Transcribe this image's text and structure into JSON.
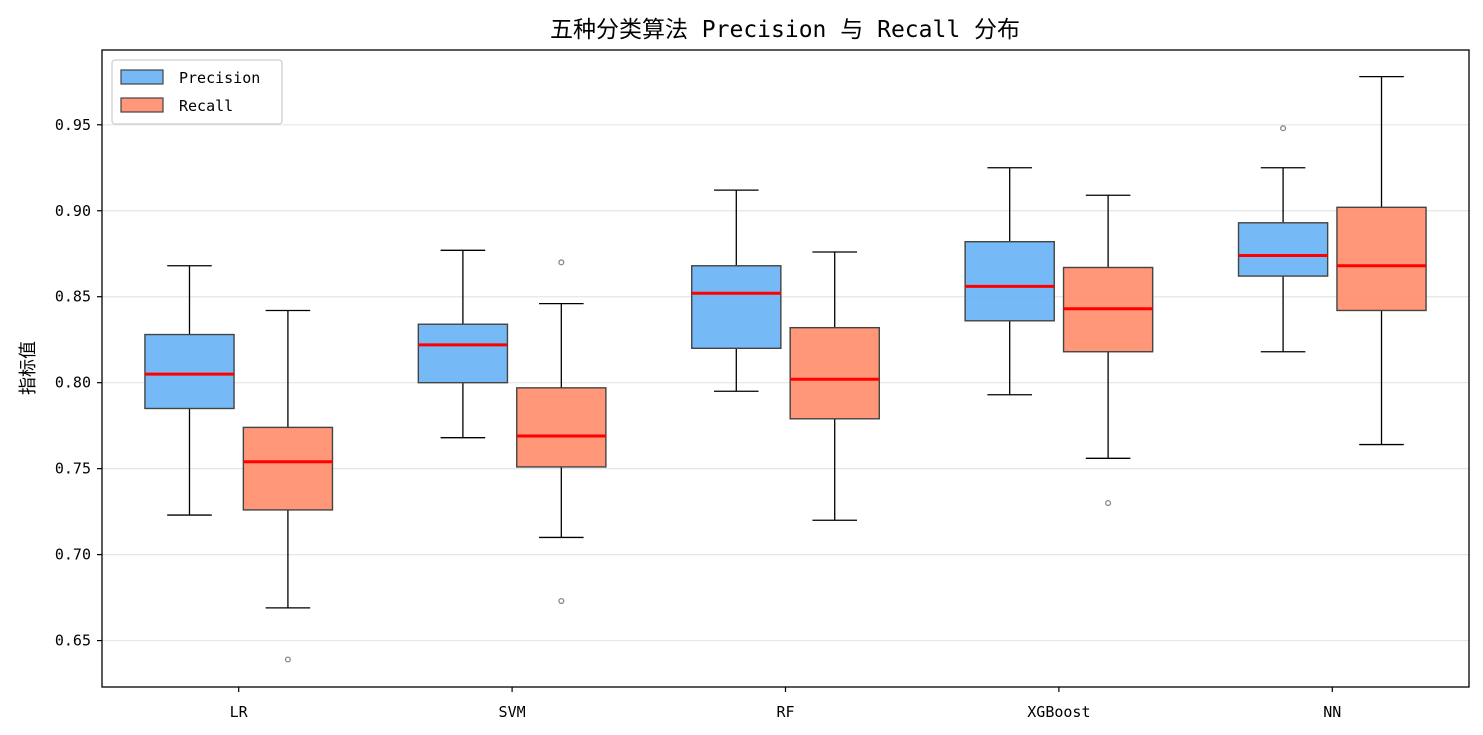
{
  "chart_data": {
    "type": "box",
    "title": "五种分类算法 Precision 与 Recall 分布",
    "xlabel": "",
    "ylabel": "指标值",
    "categories": [
      "LR",
      "SVM",
      "RF",
      "XGBoost",
      "NN"
    ],
    "ylim": [
      0.623,
      0.9935
    ],
    "yticks": [
      0.65,
      0.7,
      0.75,
      0.8,
      0.85,
      0.9,
      0.95
    ],
    "ytick_labels": [
      "0.65",
      "0.70",
      "0.75",
      "0.80",
      "0.85",
      "0.90",
      "0.95"
    ],
    "grid": "horizontal",
    "legend_position": "top-left",
    "series": [
      {
        "name": "Precision",
        "color": "#66B3F5",
        "boxes": [
          {
            "whislo": 0.723,
            "q1": 0.785,
            "med": 0.805,
            "q3": 0.828,
            "whishi": 0.868,
            "fliers": []
          },
          {
            "whislo": 0.768,
            "q1": 0.8,
            "med": 0.822,
            "q3": 0.834,
            "whishi": 0.877,
            "fliers": []
          },
          {
            "whislo": 0.795,
            "q1": 0.82,
            "med": 0.852,
            "q3": 0.868,
            "whishi": 0.912,
            "fliers": []
          },
          {
            "whislo": 0.793,
            "q1": 0.836,
            "med": 0.856,
            "q3": 0.882,
            "whishi": 0.925,
            "fliers": []
          },
          {
            "whislo": 0.818,
            "q1": 0.862,
            "med": 0.874,
            "q3": 0.893,
            "whishi": 0.925,
            "fliers": [
              0.948
            ]
          }
        ]
      },
      {
        "name": "Recall",
        "color": "#FF8C69",
        "boxes": [
          {
            "whislo": 0.669,
            "q1": 0.726,
            "med": 0.754,
            "q3": 0.774,
            "whishi": 0.842,
            "fliers": [
              0.639
            ]
          },
          {
            "whislo": 0.71,
            "q1": 0.751,
            "med": 0.769,
            "q3": 0.797,
            "whishi": 0.846,
            "fliers": [
              0.87,
              0.673
            ]
          },
          {
            "whislo": 0.72,
            "q1": 0.779,
            "med": 0.802,
            "q3": 0.832,
            "whishi": 0.876,
            "fliers": []
          },
          {
            "whislo": 0.756,
            "q1": 0.818,
            "med": 0.843,
            "q3": 0.867,
            "whishi": 0.909,
            "fliers": [
              0.73
            ]
          },
          {
            "whislo": 0.764,
            "q1": 0.842,
            "med": 0.868,
            "q3": 0.902,
            "whishi": 0.978,
            "fliers": []
          }
        ]
      }
    ],
    "median_color": "#FF0000"
  }
}
